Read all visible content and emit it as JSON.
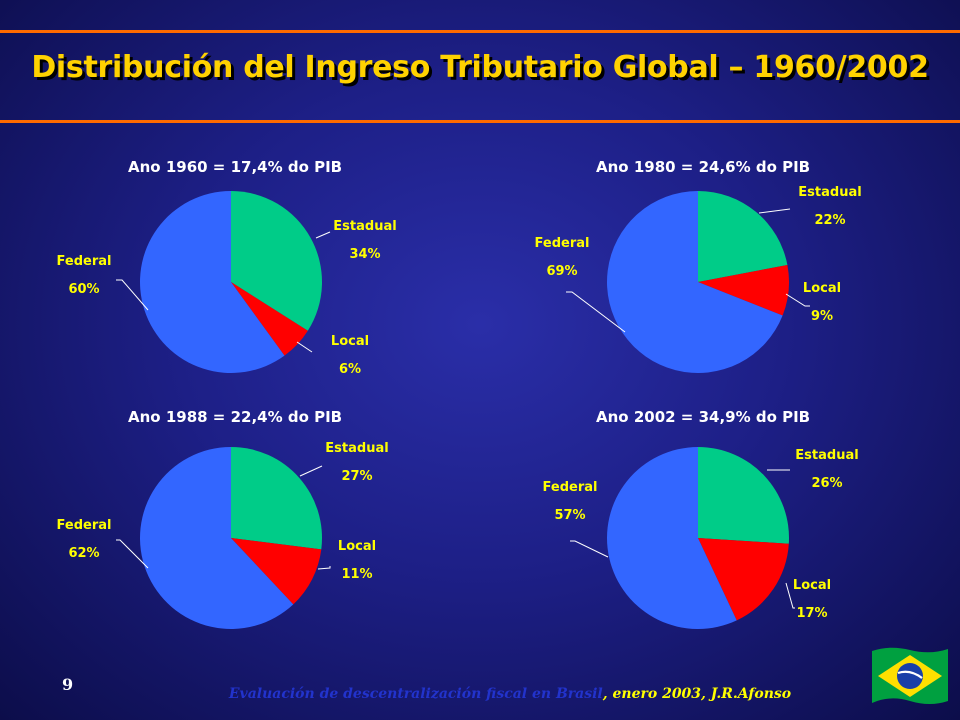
{
  "title": "Distribución del Ingreso Tributario Global – 1960/2002",
  "page_number": "9",
  "footer": {
    "part1": "Evaluación de descentralización fiscal en Brasil",
    "part2": ", enero 2003, J.R.Afonso"
  },
  "colors": {
    "Estadual": "#00cc88",
    "Local": "#ff0000",
    "Federal": "#3366ff",
    "title": "#ffd200",
    "labels": "#ffff00"
  },
  "chart_data": [
    {
      "type": "pie",
      "title": "Ano 1960 = 17,4% do PIB",
      "slices": [
        {
          "name": "Estadual",
          "value": 34,
          "label": "34%"
        },
        {
          "name": "Local",
          "value": 6,
          "label": "6%"
        },
        {
          "name": "Federal",
          "value": 60,
          "label": "60%"
        }
      ]
    },
    {
      "type": "pie",
      "title": "Ano 1980 = 24,6% do PIB",
      "slices": [
        {
          "name": "Estadual",
          "value": 22,
          "label": "22%"
        },
        {
          "name": "Local",
          "value": 9,
          "label": "9%"
        },
        {
          "name": "Federal",
          "value": 69,
          "label": "69%"
        }
      ]
    },
    {
      "type": "pie",
      "title": "Ano 1988 = 22,4% do PIB",
      "slices": [
        {
          "name": "Estadual",
          "value": 27,
          "label": "27%"
        },
        {
          "name": "Local",
          "value": 11,
          "label": "11%"
        },
        {
          "name": "Federal",
          "value": 62,
          "label": "62%"
        }
      ]
    },
    {
      "type": "pie",
      "title": "Ano 2002 = 34,9% do PIB",
      "slices": [
        {
          "name": "Estadual",
          "value": 26,
          "label": "26%"
        },
        {
          "name": "Local",
          "value": 17,
          "label": "17%"
        },
        {
          "name": "Federal",
          "value": 57,
          "label": "57%"
        }
      ]
    }
  ]
}
